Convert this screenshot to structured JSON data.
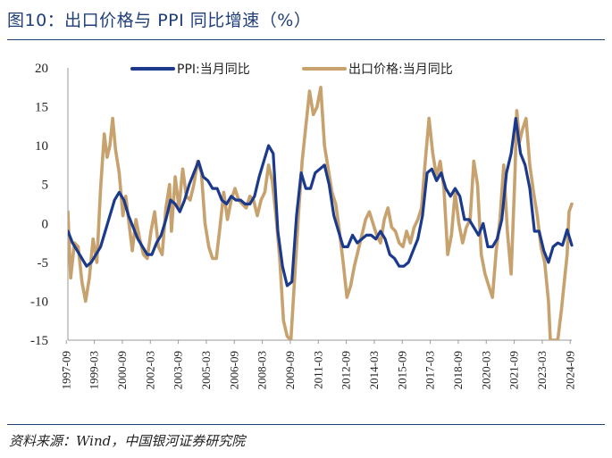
{
  "title": "图10：出口价格与 PPI 同比增速（%）",
  "source": "资料来源：Wind，中国银河证券研究院",
  "colors": {
    "ppi": "#1b3a8c",
    "export": "#c8a26e",
    "accent": "#1f3e7a"
  },
  "chart_data": {
    "type": "line",
    "ylim": [
      -15,
      20
    ],
    "yticks": [
      20,
      15,
      10,
      5,
      0,
      -5,
      -10,
      -15
    ],
    "xticks": [
      "1997-09",
      "1999-03",
      "2000-09",
      "2002-03",
      "2003-09",
      "2005-03",
      "2006-09",
      "2008-03",
      "2009-09",
      "2011-03",
      "2012-09",
      "2014-03",
      "2015-09",
      "2017-03",
      "2018-09",
      "2020-03",
      "2021-09",
      "2023-03",
      "2024-09"
    ],
    "legend_position": "top",
    "series": [
      {
        "name": "PPI:当月同比",
        "color": "#1b3a8c",
        "points": [
          [
            1997.75,
            -1.0
          ],
          [
            1998.0,
            -2.5
          ],
          [
            1998.5,
            -4.5
          ],
          [
            1998.75,
            -5.5
          ],
          [
            1999.0,
            -5.0
          ],
          [
            1999.5,
            -3.0
          ],
          [
            1999.75,
            -1.0
          ],
          [
            2000.0,
            1.0
          ],
          [
            2000.25,
            3.0
          ],
          [
            2000.5,
            4.0
          ],
          [
            2000.75,
            3.0
          ],
          [
            2001.0,
            1.0
          ],
          [
            2001.25,
            -0.5
          ],
          [
            2001.5,
            -2.0
          ],
          [
            2001.75,
            -3.0
          ],
          [
            2002.0,
            -4.0
          ],
          [
            2002.25,
            -4.0
          ],
          [
            2002.5,
            -2.5
          ],
          [
            2002.75,
            -1.5
          ],
          [
            2003.0,
            0.5
          ],
          [
            2003.25,
            3.0
          ],
          [
            2003.5,
            2.5
          ],
          [
            2003.75,
            1.5
          ],
          [
            2004.0,
            3.0
          ],
          [
            2004.25,
            5.0
          ],
          [
            2004.5,
            6.5
          ],
          [
            2004.75,
            8.0
          ],
          [
            2005.0,
            6.0
          ],
          [
            2005.25,
            5.5
          ],
          [
            2005.5,
            4.5
          ],
          [
            2005.75,
            4.5
          ],
          [
            2006.0,
            3.0
          ],
          [
            2006.25,
            2.5
          ],
          [
            2006.5,
            3.5
          ],
          [
            2006.75,
            3.0
          ],
          [
            2007.0,
            3.0
          ],
          [
            2007.25,
            2.5
          ],
          [
            2007.5,
            2.5
          ],
          [
            2007.75,
            3.5
          ],
          [
            2008.0,
            6.0
          ],
          [
            2008.25,
            8.0
          ],
          [
            2008.5,
            10.0
          ],
          [
            2008.75,
            9.0
          ],
          [
            2009.0,
            -1.0
          ],
          [
            2009.25,
            -5.5
          ],
          [
            2009.5,
            -8.0
          ],
          [
            2009.75,
            -7.5
          ],
          [
            2010.0,
            1.0
          ],
          [
            2010.25,
            6.5
          ],
          [
            2010.5,
            4.5
          ],
          [
            2010.75,
            4.5
          ],
          [
            2011.0,
            6.5
          ],
          [
            2011.25,
            7.0
          ],
          [
            2011.5,
            7.5
          ],
          [
            2011.75,
            5.0
          ],
          [
            2012.0,
            1.0
          ],
          [
            2012.25,
            -1.0
          ],
          [
            2012.5,
            -3.0
          ],
          [
            2012.75,
            -3.0
          ],
          [
            2013.0,
            -1.5
          ],
          [
            2013.25,
            -2.5
          ],
          [
            2013.5,
            -2.0
          ],
          [
            2013.75,
            -1.5
          ],
          [
            2014.0,
            -1.5
          ],
          [
            2014.25,
            -2.0
          ],
          [
            2014.5,
            -1.0
          ],
          [
            2014.75,
            -2.0
          ],
          [
            2015.0,
            -4.0
          ],
          [
            2015.25,
            -4.5
          ],
          [
            2015.5,
            -5.5
          ],
          [
            2015.75,
            -5.5
          ],
          [
            2016.0,
            -5.0
          ],
          [
            2016.25,
            -3.5
          ],
          [
            2016.5,
            -2.0
          ],
          [
            2016.75,
            1.0
          ],
          [
            2017.0,
            6.5
          ],
          [
            2017.25,
            7.0
          ],
          [
            2017.5,
            5.5
          ],
          [
            2017.75,
            6.5
          ],
          [
            2018.0,
            4.5
          ],
          [
            2018.25,
            3.5
          ],
          [
            2018.5,
            4.5
          ],
          [
            2018.75,
            3.5
          ],
          [
            2019.0,
            0.5
          ],
          [
            2019.25,
            0.5
          ],
          [
            2019.5,
            -0.5
          ],
          [
            2019.75,
            -1.5
          ],
          [
            2020.0,
            0.0
          ],
          [
            2020.25,
            -3.0
          ],
          [
            2020.5,
            -3.0
          ],
          [
            2020.75,
            -2.0
          ],
          [
            2021.0,
            0.5
          ],
          [
            2021.25,
            6.5
          ],
          [
            2021.5,
            9.0
          ],
          [
            2021.75,
            13.5
          ],
          [
            2022.0,
            9.0
          ],
          [
            2022.25,
            7.5
          ],
          [
            2022.5,
            4.5
          ],
          [
            2022.75,
            -1.0
          ],
          [
            2023.0,
            -1.0
          ],
          [
            2023.25,
            -3.5
          ],
          [
            2023.5,
            -5.0
          ],
          [
            2023.75,
            -3.0
          ],
          [
            2024.0,
            -2.5
          ],
          [
            2024.25,
            -2.8
          ],
          [
            2024.5,
            -0.8
          ],
          [
            2024.75,
            -2.8
          ]
        ]
      },
      {
        "name": "出口价格:当月同比",
        "color": "#c8a26e",
        "points": [
          [
            1997.75,
            1.5
          ],
          [
            1997.9,
            -7.0
          ],
          [
            1998.1,
            -2.5
          ],
          [
            1998.3,
            -3.0
          ],
          [
            1998.5,
            -7.5
          ],
          [
            1998.7,
            -10.0
          ],
          [
            1998.9,
            -7.0
          ],
          [
            1999.1,
            -2.0
          ],
          [
            1999.3,
            -5.0
          ],
          [
            1999.5,
            4.5
          ],
          [
            1999.7,
            11.5
          ],
          [
            1999.85,
            8.5
          ],
          [
            2000.0,
            10.0
          ],
          [
            2000.15,
            13.5
          ],
          [
            2000.3,
            9.5
          ],
          [
            2000.5,
            6.5
          ],
          [
            2000.7,
            1.0
          ],
          [
            2000.85,
            3.5
          ],
          [
            2001.0,
            0.5
          ],
          [
            2001.2,
            -3.5
          ],
          [
            2001.4,
            0.5
          ],
          [
            2001.6,
            -2.0
          ],
          [
            2001.8,
            -4.0
          ],
          [
            2002.0,
            -4.5
          ],
          [
            2002.2,
            -1.0
          ],
          [
            2002.4,
            1.5
          ],
          [
            2002.6,
            -3.0
          ],
          [
            2002.8,
            -4.0
          ],
          [
            2003.0,
            2.0
          ],
          [
            2003.2,
            5.0
          ],
          [
            2003.3,
            -1.0
          ],
          [
            2003.5,
            6.0
          ],
          [
            2003.7,
            2.0
          ],
          [
            2003.9,
            7.0
          ],
          [
            2004.1,
            3.5
          ],
          [
            2004.3,
            3.0
          ],
          [
            2004.5,
            5.0
          ],
          [
            2004.7,
            8.0
          ],
          [
            2004.9,
            6.5
          ],
          [
            2005.1,
            0.0
          ],
          [
            2005.3,
            -3.0
          ],
          [
            2005.5,
            -4.5
          ],
          [
            2005.7,
            -4.5
          ],
          [
            2005.9,
            -0.5
          ],
          [
            2006.1,
            4.0
          ],
          [
            2006.3,
            0.5
          ],
          [
            2006.5,
            3.0
          ],
          [
            2006.7,
            4.5
          ],
          [
            2006.9,
            3.0
          ],
          [
            2007.1,
            2.5
          ],
          [
            2007.3,
            2.0
          ],
          [
            2007.5,
            3.5
          ],
          [
            2007.7,
            3.0
          ],
          [
            2007.9,
            1.0
          ],
          [
            2008.1,
            3.0
          ],
          [
            2008.3,
            4.0
          ],
          [
            2008.5,
            7.5
          ],
          [
            2008.7,
            5.5
          ],
          [
            2008.9,
            1.0
          ],
          [
            2009.1,
            -4.5
          ],
          [
            2009.3,
            -12.5
          ],
          [
            2009.5,
            -14.5
          ],
          [
            2009.7,
            -15.0
          ],
          [
            2009.9,
            -7.0
          ],
          [
            2010.1,
            1.0
          ],
          [
            2010.3,
            8.0
          ],
          [
            2010.5,
            12.5
          ],
          [
            2010.7,
            17.0
          ],
          [
            2010.9,
            14.0
          ],
          [
            2011.1,
            15.0
          ],
          [
            2011.3,
            17.5
          ],
          [
            2011.5,
            10.0
          ],
          [
            2011.7,
            7.0
          ],
          [
            2011.9,
            4.0
          ],
          [
            2012.1,
            2.5
          ],
          [
            2012.3,
            -1.0
          ],
          [
            2012.5,
            -5.0
          ],
          [
            2012.7,
            -9.5
          ],
          [
            2012.9,
            -8.0
          ],
          [
            2013.1,
            -5.5
          ],
          [
            2013.3,
            -3.5
          ],
          [
            2013.5,
            -1.5
          ],
          [
            2013.7,
            0.5
          ],
          [
            2013.9,
            1.5
          ],
          [
            2014.1,
            0.0
          ],
          [
            2014.3,
            -1.5
          ],
          [
            2014.5,
            -2.5
          ],
          [
            2014.7,
            0.5
          ],
          [
            2014.9,
            2.0
          ],
          [
            2015.1,
            -0.5
          ],
          [
            2015.3,
            -1.0
          ],
          [
            2015.5,
            -2.5
          ],
          [
            2015.7,
            -3.0
          ],
          [
            2015.9,
            -1.0
          ],
          [
            2016.1,
            -2.5
          ],
          [
            2016.3,
            -0.5
          ],
          [
            2016.5,
            0.5
          ],
          [
            2016.7,
            2.0
          ],
          [
            2016.9,
            8.0
          ],
          [
            2017.1,
            13.5
          ],
          [
            2017.3,
            9.0
          ],
          [
            2017.5,
            6.0
          ],
          [
            2017.7,
            8.0
          ],
          [
            2017.9,
            4.5
          ],
          [
            2018.1,
            -4.0
          ],
          [
            2018.3,
            -1.5
          ],
          [
            2018.5,
            4.0
          ],
          [
            2018.7,
            0.0
          ],
          [
            2018.9,
            -2.5
          ],
          [
            2019.1,
            -0.5
          ],
          [
            2019.3,
            0.5
          ],
          [
            2019.5,
            8.0
          ],
          [
            2019.7,
            5.0
          ],
          [
            2019.9,
            -4.0
          ],
          [
            2020.1,
            -6.5
          ],
          [
            2020.3,
            -8.0
          ],
          [
            2020.5,
            -9.5
          ],
          [
            2020.7,
            -3.5
          ],
          [
            2020.9,
            0.5
          ],
          [
            2021.1,
            7.5
          ],
          [
            2021.3,
            -1.0
          ],
          [
            2021.5,
            -6.5
          ],
          [
            2021.7,
            6.0
          ],
          [
            2021.8,
            14.5
          ],
          [
            2021.95,
            10.5
          ],
          [
            2022.1,
            12.0
          ],
          [
            2022.3,
            13.5
          ],
          [
            2022.5,
            7.5
          ],
          [
            2022.7,
            4.0
          ],
          [
            2022.9,
            1.0
          ],
          [
            2023.1,
            -3.0
          ],
          [
            2023.3,
            -5.0
          ],
          [
            2023.5,
            -10.0
          ],
          [
            2023.6,
            -15.0
          ],
          [
            2023.8,
            -15.0
          ],
          [
            2024.0,
            -15.0
          ],
          [
            2024.2,
            -11.0
          ],
          [
            2024.35,
            -7.5
          ],
          [
            2024.5,
            -4.0
          ],
          [
            2024.6,
            1.5
          ],
          [
            2024.75,
            2.5
          ]
        ]
      }
    ]
  }
}
